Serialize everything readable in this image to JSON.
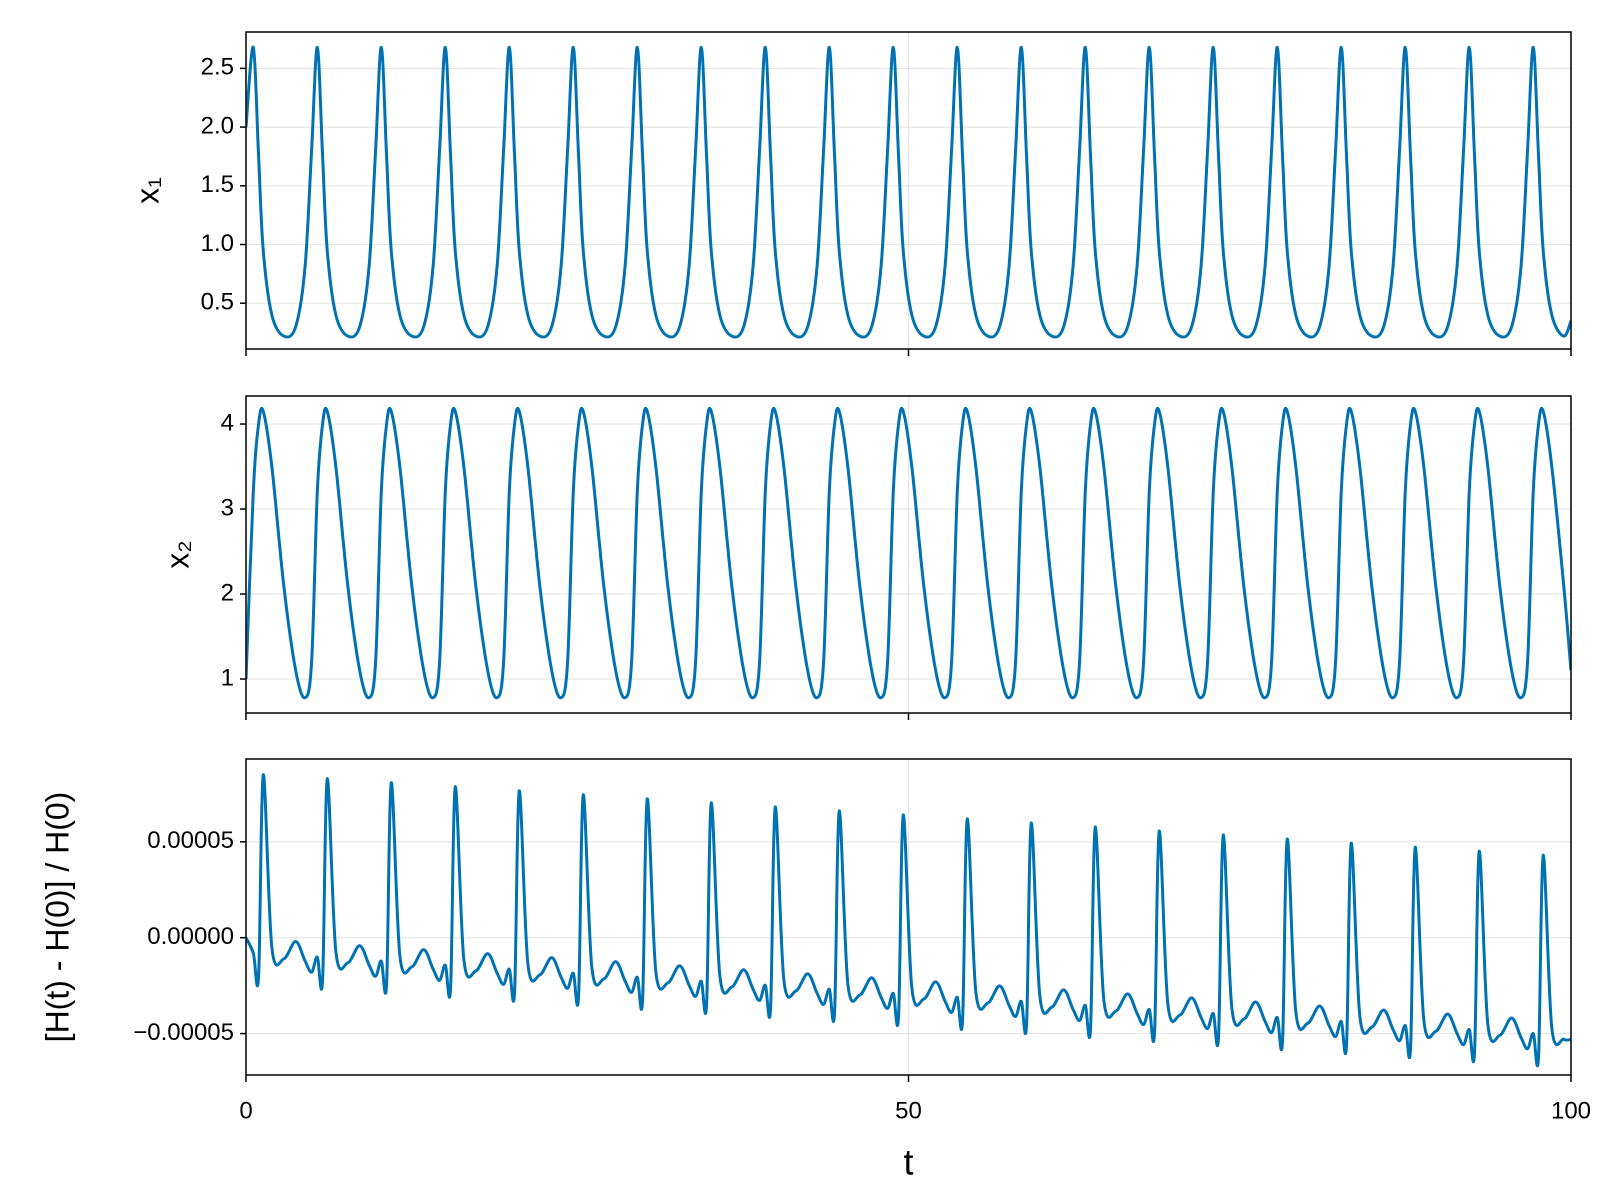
{
  "chart_data": [
    {
      "type": "line",
      "ylabel": "x₁",
      "color": "#0072b2",
      "grid": true,
      "xlim": [
        0,
        100
      ],
      "xticks": [
        0,
        50,
        100
      ],
      "ylim": [
        0.11,
        2.81
      ],
      "yticks": [
        0.5,
        {
          "value": 1,
          "label": "1.0"
        },
        1.5,
        {
          "value": 2,
          "label": "2.0"
        },
        2.5
      ],
      "x": [
        0,
        0.55,
        0.95,
        1.3,
        1.95,
        2.85,
        3.75,
        4.45,
        4.95,
        5.38,
        5.78,
        6.13,
        6.78,
        7.68,
        8.58,
        9.28,
        9.78,
        10.21,
        10.61,
        10.96,
        11.61,
        12.51,
        13.41,
        14.11,
        14.61,
        15.04,
        15.44,
        15.79,
        16.44,
        17.34,
        18.24,
        18.94,
        19.44,
        19.87,
        20.27,
        20.62,
        21.27,
        22.17,
        23.07,
        23.77,
        24.27,
        24.7,
        25.1,
        25.45,
        26.1,
        27,
        27.9,
        28.6,
        29.1,
        29.53,
        29.93,
        30.28,
        30.93,
        31.83,
        32.73,
        33.43,
        33.93,
        34.36,
        34.76,
        35.11,
        35.76,
        36.66,
        37.56,
        38.26,
        38.76,
        39.19,
        39.59,
        39.94,
        40.59,
        41.49,
        42.39,
        43.09,
        43.59,
        44.02,
        44.42,
        44.77,
        45.42,
        46.32,
        47.22,
        47.92,
        48.42,
        48.85,
        49.25,
        49.6,
        50.25,
        51.15,
        52.05,
        52.75,
        53.25,
        53.68,
        54.08,
        54.43,
        55.08,
        55.98,
        56.88,
        57.58,
        58.08,
        58.51,
        58.91,
        59.26,
        59.91,
        60.81,
        61.71,
        62.41,
        62.91,
        63.34,
        63.74,
        64.09,
        64.74,
        65.64,
        66.54,
        67.24,
        67.74,
        68.17,
        68.57,
        68.92,
        69.57,
        70.47,
        71.37,
        72.07,
        72.57,
        73,
        73.4,
        73.75,
        74.4,
        75.3,
        76.2,
        76.9,
        77.4,
        77.83,
        78.23,
        78.58,
        79.23,
        80.13,
        81.03,
        81.73,
        82.23,
        82.66,
        83.06,
        83.41,
        84.06,
        84.96,
        85.86,
        86.56,
        87.06,
        87.49,
        87.89,
        88.24,
        88.89,
        89.79,
        90.69,
        91.39,
        91.89,
        92.32,
        92.72,
        93.07,
        93.72,
        94.62,
        95.52,
        96.22,
        96.72,
        97.15,
        97.55,
        97.9,
        98.55,
        99.45,
        100
      ],
      "values": [
        2.0,
        2.68,
        1.75,
        0.95,
        0.4,
        0.22,
        0.3,
        0.8,
        1.8,
        2.68,
        1.75,
        0.95,
        0.4,
        0.22,
        0.3,
        0.8,
        1.8,
        2.68,
        1.75,
        0.95,
        0.4,
        0.22,
        0.3,
        0.8,
        1.8,
        2.68,
        1.75,
        0.95,
        0.4,
        0.22,
        0.3,
        0.8,
        1.8,
        2.68,
        1.75,
        0.95,
        0.4,
        0.22,
        0.3,
        0.8,
        1.8,
        2.68,
        1.75,
        0.95,
        0.4,
        0.22,
        0.3,
        0.8,
        1.8,
        2.68,
        1.75,
        0.95,
        0.4,
        0.22,
        0.3,
        0.8,
        1.8,
        2.68,
        1.75,
        0.95,
        0.4,
        0.22,
        0.3,
        0.8,
        1.8,
        2.68,
        1.75,
        0.95,
        0.4,
        0.22,
        0.3,
        0.8,
        1.8,
        2.68,
        1.75,
        0.95,
        0.4,
        0.22,
        0.3,
        0.8,
        1.8,
        2.68,
        1.75,
        0.95,
        0.4,
        0.22,
        0.3,
        0.8,
        1.8,
        2.68,
        1.75,
        0.95,
        0.4,
        0.22,
        0.3,
        0.8,
        1.8,
        2.68,
        1.75,
        0.95,
        0.4,
        0.22,
        0.3,
        0.8,
        1.8,
        2.68,
        1.75,
        0.95,
        0.4,
        0.22,
        0.3,
        0.8,
        1.8,
        2.68,
        1.75,
        0.95,
        0.4,
        0.22,
        0.3,
        0.8,
        1.8,
        2.68,
        1.75,
        0.95,
        0.4,
        0.22,
        0.3,
        0.8,
        1.8,
        2.68,
        1.75,
        0.95,
        0.4,
        0.22,
        0.3,
        0.8,
        1.8,
        2.68,
        1.75,
        0.95,
        0.4,
        0.22,
        0.3,
        0.8,
        1.8,
        2.68,
        1.75,
        0.95,
        0.4,
        0.22,
        0.3,
        0.8,
        1.8,
        2.68,
        1.75,
        0.95,
        0.4,
        0.22,
        0.3,
        0.8,
        1.8,
        2.68,
        1.75,
        0.95,
        0.4,
        0.22,
        0.35
      ]
    },
    {
      "type": "line",
      "ylabel": "x₂",
      "color": "#0072b2",
      "grid": true,
      "xlim": [
        0,
        100
      ],
      "xticks": [
        0,
        50,
        100
      ],
      "ylim": [
        0.6,
        4.33
      ],
      "yticks": [
        1,
        2,
        3,
        4
      ],
      "x": [
        0,
        0.55,
        0.95,
        1.3,
        1.95,
        2.85,
        3.75,
        4.45,
        4.95,
        5.38,
        5.78,
        6.13,
        6.78,
        7.68,
        8.58,
        9.28,
        9.78,
        10.21,
        10.61,
        10.96,
        11.61,
        12.51,
        13.41,
        14.11,
        14.61,
        15.04,
        15.44,
        15.79,
        16.44,
        17.34,
        18.24,
        18.94,
        19.44,
        19.87,
        20.27,
        20.62,
        21.27,
        22.17,
        23.07,
        23.77,
        24.27,
        24.7,
        25.1,
        25.45,
        26.1,
        27,
        27.9,
        28.6,
        29.1,
        29.53,
        29.93,
        30.28,
        30.93,
        31.83,
        32.73,
        33.43,
        33.93,
        34.36,
        34.76,
        35.11,
        35.76,
        36.66,
        37.56,
        38.26,
        38.76,
        39.19,
        39.59,
        39.94,
        40.59,
        41.49,
        42.39,
        43.09,
        43.59,
        44.02,
        44.42,
        44.77,
        45.42,
        46.32,
        47.22,
        47.92,
        48.42,
        48.85,
        49.25,
        49.6,
        50.25,
        51.15,
        52.05,
        52.75,
        53.25,
        53.68,
        54.08,
        54.43,
        55.08,
        55.98,
        56.88,
        57.58,
        58.08,
        58.51,
        58.91,
        59.26,
        59.91,
        60.81,
        61.71,
        62.41,
        62.91,
        63.34,
        63.74,
        64.09,
        64.74,
        65.64,
        66.54,
        67.24,
        67.74,
        68.17,
        68.57,
        68.92,
        69.57,
        70.47,
        71.37,
        72.07,
        72.57,
        73,
        73.4,
        73.75,
        74.4,
        75.3,
        76.2,
        76.9,
        77.4,
        77.83,
        78.23,
        78.58,
        79.23,
        80.13,
        81.03,
        81.73,
        82.23,
        82.66,
        83.06,
        83.41,
        84.06,
        84.96,
        85.86,
        86.56,
        87.06,
        87.49,
        87.89,
        88.24,
        88.89,
        89.79,
        90.69,
        91.39,
        91.89,
        92.32,
        92.72,
        93.07,
        93.72,
        94.62,
        95.52,
        96.22,
        96.72,
        97.15,
        97.55,
        97.9,
        98.55,
        99.45,
        100
      ],
      "values": [
        1.0,
        3.2,
        4.0,
        4.15,
        3.5,
        2.1,
        1.1,
        0.78,
        1.2,
        3.2,
        4.0,
        4.15,
        3.5,
        2.1,
        1.1,
        0.78,
        1.2,
        3.2,
        4.0,
        4.15,
        3.5,
        2.1,
        1.1,
        0.78,
        1.2,
        3.2,
        4.0,
        4.15,
        3.5,
        2.1,
        1.1,
        0.78,
        1.2,
        3.2,
        4.0,
        4.15,
        3.5,
        2.1,
        1.1,
        0.78,
        1.2,
        3.2,
        4.0,
        4.15,
        3.5,
        2.1,
        1.1,
        0.78,
        1.2,
        3.2,
        4.0,
        4.15,
        3.5,
        2.1,
        1.1,
        0.78,
        1.2,
        3.2,
        4.0,
        4.15,
        3.5,
        2.1,
        1.1,
        0.78,
        1.2,
        3.2,
        4.0,
        4.15,
        3.5,
        2.1,
        1.1,
        0.78,
        1.2,
        3.2,
        4.0,
        4.15,
        3.5,
        2.1,
        1.1,
        0.78,
        1.2,
        3.2,
        4.0,
        4.15,
        3.5,
        2.1,
        1.1,
        0.78,
        1.2,
        3.2,
        4.0,
        4.15,
        3.5,
        2.1,
        1.1,
        0.78,
        1.2,
        3.2,
        4.0,
        4.15,
        3.5,
        2.1,
        1.1,
        0.78,
        1.2,
        3.2,
        4.0,
        4.15,
        3.5,
        2.1,
        1.1,
        0.78,
        1.2,
        3.2,
        4.0,
        4.15,
        3.5,
        2.1,
        1.1,
        0.78,
        1.2,
        3.2,
        4.0,
        4.15,
        3.5,
        2.1,
        1.1,
        0.78,
        1.2,
        3.2,
        4.0,
        4.15,
        3.5,
        2.1,
        1.1,
        0.78,
        1.2,
        3.2,
        4.0,
        4.15,
        3.5,
        2.1,
        1.1,
        0.78,
        1.2,
        3.2,
        4.0,
        4.15,
        3.5,
        2.1,
        1.1,
        0.78,
        1.2,
        3.2,
        4.0,
        4.15,
        3.5,
        2.1,
        1.1,
        0.78,
        1.2,
        3.2,
        4.0,
        4.15,
        3.5,
        2.1,
        1.1
      ]
    },
    {
      "type": "line",
      "ylabel": "[H(t) - H(0)] / H(0)",
      "xlabel": "t",
      "color": "#0072b2",
      "grid": true,
      "xlim": [
        0,
        100
      ],
      "xticks": [
        0,
        50,
        100
      ],
      "ylim": [
        -7.16e-05,
        9.32e-05
      ],
      "yticks": [
        {
          "value": 5e-05,
          "label": "0.00005"
        },
        {
          "value": 0,
          "label": "0.00000"
        },
        {
          "value": -5e-05,
          "label": "−0.00005"
        }
      ],
      "x": [
        0,
        0.55,
        0.95,
        1.3,
        1.95,
        2.85,
        3.75,
        4.45,
        4.95,
        5.38,
        5.78,
        6.13,
        6.78,
        7.68,
        8.58,
        9.28,
        9.78,
        10.21,
        10.61,
        10.96,
        11.61,
        12.51,
        13.41,
        14.11,
        14.61,
        15.04,
        15.44,
        15.79,
        16.44,
        17.34,
        18.24,
        18.94,
        19.44,
        19.87,
        20.27,
        20.62,
        21.27,
        22.17,
        23.07,
        23.77,
        24.27,
        24.7,
        25.1,
        25.45,
        26.1,
        27,
        27.9,
        28.6,
        29.1,
        29.53,
        29.93,
        30.28,
        30.93,
        31.83,
        32.73,
        33.43,
        33.93,
        34.36,
        34.76,
        35.11,
        35.76,
        36.66,
        37.56,
        38.26,
        38.76,
        39.19,
        39.59,
        39.94,
        40.59,
        41.49,
        42.39,
        43.09,
        43.59,
        44.02,
        44.42,
        44.77,
        45.42,
        46.32,
        47.22,
        47.92,
        48.42,
        48.85,
        49.25,
        49.6,
        50.25,
        51.15,
        52.05,
        52.75,
        53.25,
        53.68,
        54.08,
        54.43,
        55.08,
        55.98,
        56.88,
        57.58,
        58.08,
        58.51,
        58.91,
        59.26,
        59.91,
        60.81,
        61.71,
        62.41,
        62.91,
        63.34,
        63.74,
        64.09,
        64.74,
        65.64,
        66.54,
        67.24,
        67.74,
        68.17,
        68.57,
        68.92,
        69.57,
        70.47,
        71.37,
        72.07,
        72.57,
        73,
        73.4,
        73.75,
        74.4,
        75.3,
        76.2,
        76.9,
        77.4,
        77.83,
        78.23,
        78.58,
        79.23,
        80.13,
        81.03,
        81.73,
        82.23,
        82.66,
        83.06,
        83.41,
        84.06,
        84.96,
        85.86,
        86.56,
        87.06,
        87.49,
        87.89,
        88.24,
        88.89,
        89.79,
        90.69,
        91.39,
        91.89,
        92.32,
        92.72,
        93.07,
        93.72,
        94.62,
        95.52,
        96.22,
        96.72,
        97.15,
        97.55,
        97.9,
        98.55,
        99.45,
        100
      ],
      "values": [
        0,
        -8e-06,
        -2e-05,
        8.5e-05,
        -5e-06,
        -1.1e-05,
        -2e-06,
        -1.2e-05,
        -1.8e-05,
        -1.01e-05,
        -2.21e-05,
        8.29e-05,
        -7.1e-06,
        -1.31e-05,
        -4.1e-06,
        -1.41e-05,
        -2.01e-05,
        -1.22e-05,
        -2.42e-05,
        8.08e-05,
        -9.2e-06,
        -1.52e-05,
        -6.2e-06,
        -1.62e-05,
        -2.22e-05,
        -1.43e-05,
        -2.63e-05,
        7.87e-05,
        -1.13e-05,
        -1.73e-05,
        -8.3e-06,
        -1.83e-05,
        -2.43e-05,
        -1.64e-05,
        -2.84e-05,
        7.66e-05,
        -1.34e-05,
        -1.94e-05,
        -1.04e-05,
        -2.04e-05,
        -2.64e-05,
        -1.85e-05,
        -3.05e-05,
        7.45e-05,
        -1.55e-05,
        -2.15e-05,
        -1.25e-05,
        -2.25e-05,
        -2.85e-05,
        -2.06e-05,
        -3.26e-05,
        7.24e-05,
        -1.76e-05,
        -2.36e-05,
        -1.46e-05,
        -2.46e-05,
        -3.06e-05,
        -2.27e-05,
        -3.47e-05,
        7.03e-05,
        -1.97e-05,
        -2.57e-05,
        -1.67e-05,
        -2.67e-05,
        -3.27e-05,
        -2.48e-05,
        -3.68e-05,
        6.82e-05,
        -2.18e-05,
        -2.78e-05,
        -1.88e-05,
        -2.88e-05,
        -3.48e-05,
        -2.69e-05,
        -3.89e-05,
        6.61e-05,
        -2.39e-05,
        -2.99e-05,
        -2.09e-05,
        -3.09e-05,
        -3.69e-05,
        -2.9e-05,
        -4.1e-05,
        6.4e-05,
        -2.6e-05,
        -3.2e-05,
        -2.3e-05,
        -3.3e-05,
        -3.9e-05,
        -3.11e-05,
        -4.31e-05,
        6.19e-05,
        -2.81e-05,
        -3.41e-05,
        -2.51e-05,
        -3.51e-05,
        -4.11e-05,
        -3.32e-05,
        -4.52e-05,
        5.98e-05,
        -3.02e-05,
        -3.62e-05,
        -2.72e-05,
        -3.72e-05,
        -4.32e-05,
        -3.53e-05,
        -4.73e-05,
        5.77e-05,
        -3.23e-05,
        -3.83e-05,
        -2.93e-05,
        -3.93e-05,
        -4.53e-05,
        -3.74e-05,
        -4.94e-05,
        5.56e-05,
        -3.44e-05,
        -4.04e-05,
        -3.14e-05,
        -4.14e-05,
        -4.74e-05,
        -3.95e-05,
        -5.15e-05,
        5.35e-05,
        -3.65e-05,
        -4.25e-05,
        -3.35e-05,
        -4.35e-05,
        -4.95e-05,
        -4.16e-05,
        -5.36e-05,
        5.14e-05,
        -3.86e-05,
        -4.46e-05,
        -3.56e-05,
        -4.56e-05,
        -5.16e-05,
        -4.37e-05,
        -5.57e-05,
        4.93e-05,
        -4.07e-05,
        -4.67e-05,
        -3.77e-05,
        -4.77e-05,
        -5.37e-05,
        -4.58e-05,
        -5.78e-05,
        4.72e-05,
        -4.28e-05,
        -4.88e-05,
        -3.98e-05,
        -4.98e-05,
        -5.58e-05,
        -4.79e-05,
        -5.99e-05,
        4.51e-05,
        -4.49e-05,
        -5.09e-05,
        -4.19e-05,
        -5.19e-05,
        -5.79e-05,
        -5e-05,
        -6.2e-05,
        4.3e-05,
        -4.7e-05,
        -5.3e-05,
        -5.3e-05
      ]
    }
  ]
}
